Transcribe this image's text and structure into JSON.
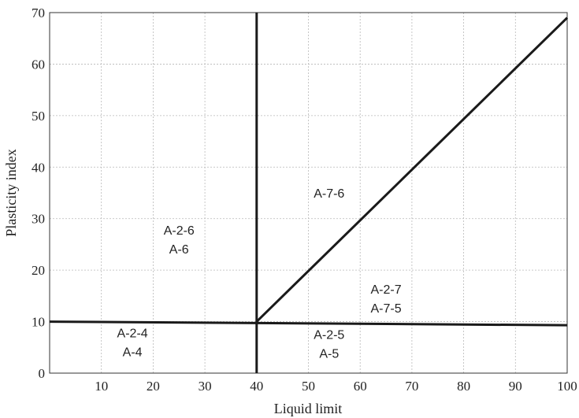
{
  "chart_data": {
    "type": "line",
    "xlabel": "Liquid limit",
    "ylabel": "Plasticity index",
    "xlim": [
      0,
      100
    ],
    "ylim": [
      0,
      70
    ],
    "x_ticks": [
      10,
      20,
      30,
      40,
      50,
      60,
      70,
      80,
      90,
      100
    ],
    "y_ticks": [
      0,
      10,
      20,
      30,
      40,
      50,
      60,
      70
    ],
    "grid": true,
    "lines": [
      {
        "points": [
          [
            0,
            10
          ],
          [
            100,
            9.3
          ]
        ]
      },
      {
        "points": [
          [
            40,
            70
          ],
          [
            40,
            0
          ]
        ]
      },
      {
        "points": [
          [
            40,
            10
          ],
          [
            100,
            69
          ]
        ]
      }
    ],
    "region_labels": [
      {
        "lines": [
          "A-7-6"
        ],
        "x": 54,
        "y": 35
      },
      {
        "lines": [
          "A-2-6",
          "A-6"
        ],
        "x": 25,
        "y": 26
      },
      {
        "lines": [
          "A-2-7",
          "A-7-5"
        ],
        "x": 65,
        "y": 14.5
      },
      {
        "lines": [
          "A-2-4",
          "A-4"
        ],
        "x": 16,
        "y": 6
      },
      {
        "lines": [
          "A-2-5",
          "A-5"
        ],
        "x": 54,
        "y": 5.7
      }
    ],
    "colors": {
      "line": "#1a1a1a",
      "grid": "#b8b8b8",
      "frame": "#333333"
    }
  }
}
